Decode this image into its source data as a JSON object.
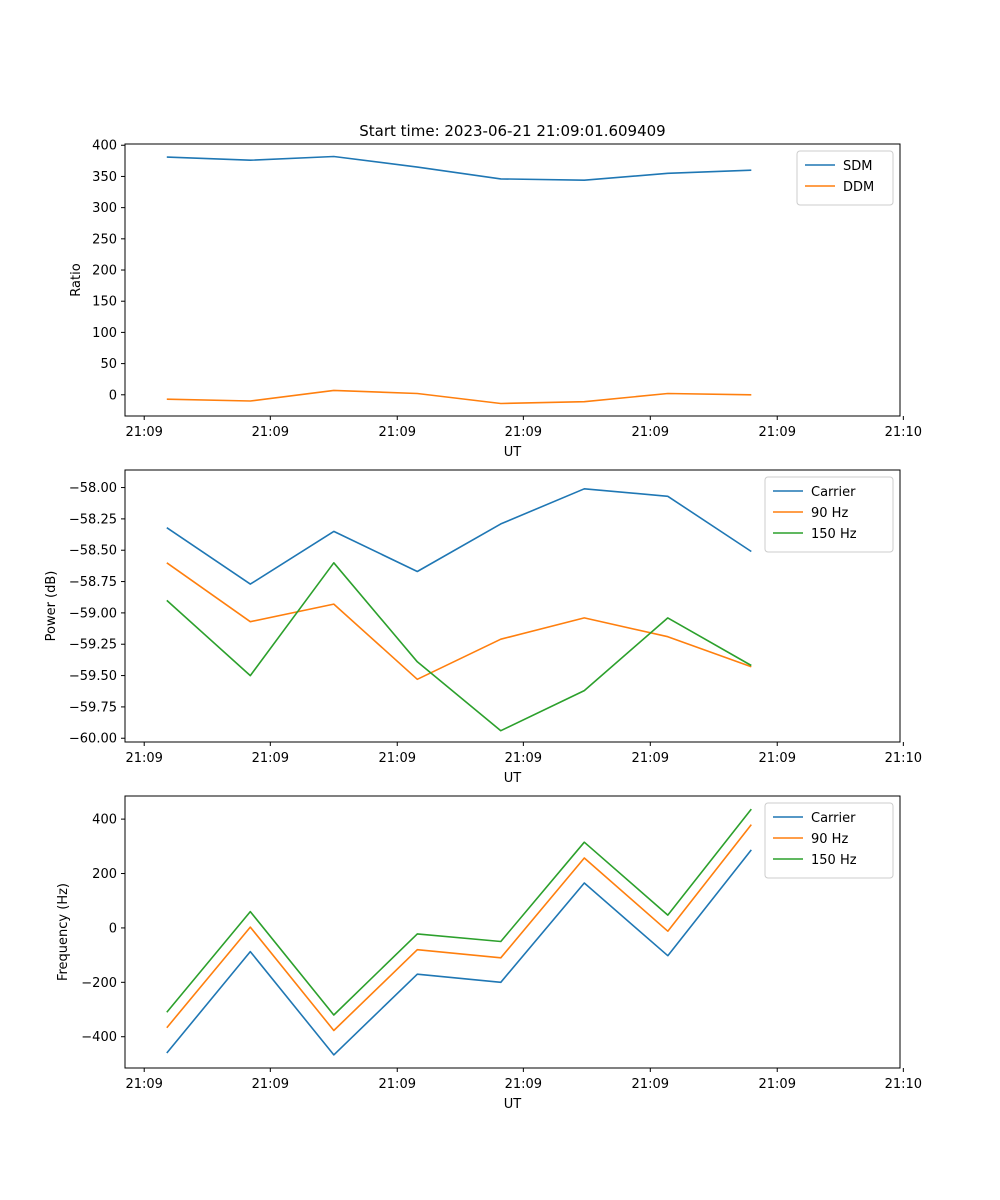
{
  "figure": {
    "title": "Start time: 2023-06-21 21:09:01.609409"
  },
  "chart_data": [
    {
      "type": "line",
      "title": "Start time: 2023-06-21 21:09:01.609409",
      "xlabel": "UT",
      "ylabel": "Ratio",
      "x": [
        1,
        2,
        3,
        4,
        5,
        6,
        7,
        8
      ],
      "xlim": [
        0.5,
        9.78
      ],
      "xticks": [
        0.73,
        2.24,
        3.76,
        5.27,
        6.79,
        8.31,
        9.82
      ],
      "xtick_labels": [
        "21:09",
        "21:09",
        "21:09",
        "21:09",
        "21:09",
        "21:09",
        "21:10"
      ],
      "ylim": [
        -34,
        402
      ],
      "yticks": [
        0,
        50,
        100,
        150,
        200,
        250,
        300,
        350,
        400
      ],
      "ytick_labels": [
        "0",
        "50",
        "100",
        "150",
        "200",
        "250",
        "300",
        "350",
        "400"
      ],
      "legend": "top-right",
      "series": [
        {
          "name": "SDM",
          "color": "#1f77b4",
          "values": [
            381,
            376,
            382,
            365,
            346,
            344,
            355,
            360
          ]
        },
        {
          "name": "DDM",
          "color": "#ff7f0e",
          "values": [
            -7,
            -10,
            7,
            2,
            -14,
            -11,
            2,
            0
          ]
        }
      ]
    },
    {
      "type": "line",
      "title": "",
      "xlabel": "UT",
      "ylabel": "Power (dB)",
      "x": [
        1,
        2,
        3,
        4,
        5,
        6,
        7,
        8
      ],
      "xlim": [
        0.5,
        9.78
      ],
      "xticks": [
        0.73,
        2.24,
        3.76,
        5.27,
        6.79,
        8.31,
        9.82
      ],
      "xtick_labels": [
        "21:09",
        "21:09",
        "21:09",
        "21:09",
        "21:09",
        "21:09",
        "21:10"
      ],
      "ylim": [
        -60.03,
        -57.86
      ],
      "yticks": [
        -60.0,
        -59.75,
        -59.5,
        -59.25,
        -59.0,
        -58.75,
        -58.5,
        -58.25,
        -58.0
      ],
      "ytick_labels": [
        "−60.00",
        "−59.75",
        "−59.50",
        "−59.25",
        "−59.00",
        "−58.75",
        "−58.50",
        "−58.25",
        "−58.00"
      ],
      "legend": "top-right",
      "series": [
        {
          "name": "Carrier",
          "color": "#1f77b4",
          "values": [
            -58.32,
            -58.77,
            -58.35,
            -58.67,
            -58.29,
            -58.01,
            -58.07,
            -58.51
          ]
        },
        {
          "name": "90 Hz",
          "color": "#ff7f0e",
          "values": [
            -58.6,
            -59.07,
            -58.93,
            -59.53,
            -59.21,
            -59.04,
            -59.19,
            -59.43
          ]
        },
        {
          "name": "150 Hz",
          "color": "#2ca02c",
          "values": [
            -58.9,
            -59.5,
            -58.6,
            -59.39,
            -59.94,
            -59.62,
            -59.04,
            -59.42
          ]
        }
      ]
    },
    {
      "type": "line",
      "title": "",
      "xlabel": "UT",
      "ylabel": "Frequency (Hz)",
      "x": [
        1,
        2,
        3,
        4,
        5,
        6,
        7,
        8
      ],
      "xlim": [
        0.5,
        9.78
      ],
      "xticks": [
        0.73,
        2.24,
        3.76,
        5.27,
        6.79,
        8.31,
        9.82
      ],
      "xtick_labels": [
        "21:09",
        "21:09",
        "21:09",
        "21:09",
        "21:09",
        "21:09",
        "21:10"
      ],
      "ylim": [
        -515,
        485
      ],
      "yticks": [
        -400,
        -200,
        0,
        200,
        400
      ],
      "ytick_labels": [
        "−400",
        "−200",
        "0",
        "200",
        "400"
      ],
      "legend": "top-right",
      "series": [
        {
          "name": "Carrier",
          "color": "#1f77b4",
          "values": [
            -460,
            -87,
            -467,
            -170,
            -200,
            165,
            -102,
            287
          ]
        },
        {
          "name": "90 Hz",
          "color": "#ff7f0e",
          "values": [
            -367,
            3,
            -377,
            -80,
            -110,
            257,
            -12,
            380
          ]
        },
        {
          "name": "150 Hz",
          "color": "#2ca02c",
          "values": [
            -310,
            60,
            -320,
            -22,
            -50,
            315,
            47,
            437
          ]
        }
      ]
    }
  ]
}
